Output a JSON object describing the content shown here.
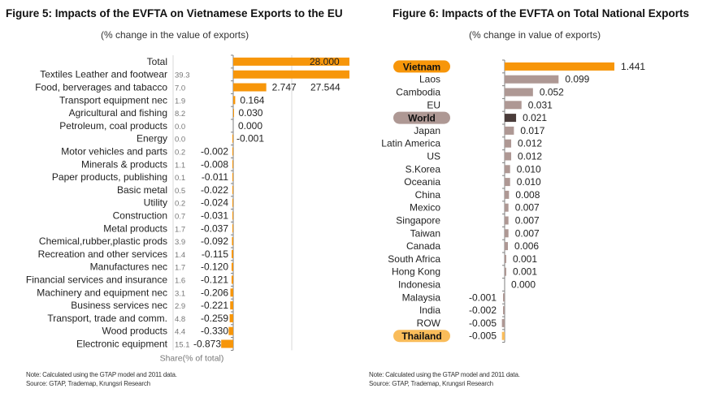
{
  "colors": {
    "orange": "#F7960A",
    "thailand": "#F9BC5A",
    "mauve": "#AE9894",
    "dark": "#4A3C3A",
    "share_text": "#777777",
    "gridline": "#D9D9D9",
    "axis": "#7F7F7F"
  },
  "chart_data": [
    {
      "type": "bar",
      "orientation": "horizontal",
      "title": "Figure 5: Impacts of the EVFTA on Vietnamese Exports to the EU",
      "subtitle": "(% change in the value of exports)",
      "share_column_label": "Share(% of total)",
      "xlabel": "",
      "ylabel": "",
      "grid": true,
      "legend": "none",
      "axis_break_note": "Total and Textiles bars extend beyond visible plot area",
      "categories": [
        "Total",
        "Textiles Leather and footwear",
        "Food, berverages and tabacco",
        "Transport equipment nec",
        "Agricultural and fishing",
        "Petroleum, coal products",
        "Energy",
        "Motor vehicles and parts",
        "Minerals & products",
        "Paper products, publishing",
        "Basic metal",
        "Utility",
        "Construction",
        "Metal products",
        "Chemical,rubber,plastic prods",
        "Recreation and other services",
        "Manufactures nec",
        "Financial services and insurance",
        "Machinery and equipment nec",
        "Business services nec",
        "Transport, trade and comm.",
        "Wood products",
        "Electronic equipment"
      ],
      "values": [
        28.0,
        27.544,
        2.747,
        0.164,
        0.03,
        0.0,
        -0.001,
        -0.002,
        -0.008,
        -0.011,
        -0.022,
        -0.024,
        -0.031,
        -0.037,
        -0.092,
        -0.115,
        -0.12,
        -0.121,
        -0.206,
        -0.221,
        -0.259,
        -0.33,
        -0.873
      ],
      "value_labels": [
        "28.000",
        "27.544",
        "2.747",
        "0.164",
        "0.030",
        "0.000",
        "-0.001",
        "-0.002",
        "-0.008",
        "-0.011",
        "-0.022",
        "-0.024",
        "-0.031",
        "-0.037",
        "-0.092",
        "-0.115",
        "-0.120",
        "-0.121",
        "-0.206",
        "-0.221",
        "-0.259",
        "-0.330",
        "-0.873"
      ],
      "shares": [
        "",
        "39.3",
        "7.0",
        "1.9",
        "8.2",
        "0.0",
        "0.0",
        "0.2",
        "1.1",
        "0.1",
        "0.5",
        "0.2",
        "0.7",
        "1.7",
        "3.9",
        "1.4",
        "1.7",
        "1.6",
        "3.1",
        "2.9",
        "4.8",
        "4.4",
        "15.1"
      ],
      "visible_xlim": [
        -1.2,
        5.5
      ],
      "note": "Note: Calculated using the GTAP model and 2011 data.",
      "source": "Source: GTAP, Trademap, Krungsri Research"
    },
    {
      "type": "bar",
      "orientation": "horizontal",
      "title": "Figure 6: Impacts of the EVFTA on Total National Exports",
      "subtitle": "(% change in value of exports)",
      "xlabel": "",
      "ylabel": "",
      "grid": false,
      "legend": "none",
      "categories": [
        "Vietnam",
        "Laos",
        "Cambodia",
        "EU",
        "World",
        "Japan",
        "Latin America",
        "US",
        "S.Korea",
        "Oceania",
        "China",
        "Mexico",
        "Singapore",
        "Taiwan",
        "Canada",
        "South Africa",
        "Hong Kong",
        "Indonesia",
        "Malaysia",
        "India",
        "ROW",
        "Thailand"
      ],
      "values": [
        1.441,
        0.099,
        0.052,
        0.031,
        0.021,
        0.017,
        0.012,
        0.012,
        0.01,
        0.01,
        0.008,
        0.007,
        0.007,
        0.007,
        0.006,
        0.001,
        0.001,
        0.0,
        -0.001,
        -0.002,
        -0.005,
        -0.005
      ],
      "value_labels": [
        "1.441",
        "0.099",
        "0.052",
        "0.031",
        "0.021",
        "0.017",
        "0.012",
        "0.012",
        "0.010",
        "0.010",
        "0.008",
        "0.007",
        "0.007",
        "0.007",
        "0.006",
        "0.001",
        "0.001",
        "0.000",
        "-0.001",
        "-0.002",
        "-0.005",
        "-0.005"
      ],
      "highlight": {
        "Vietnam": "orange",
        "World": "dark",
        "Thailand": "thailand"
      },
      "note": "Note: Calculated using the GTAP model and 2011 data.",
      "source": "Source: GTAP, Trademap, Krungsri Research"
    }
  ]
}
